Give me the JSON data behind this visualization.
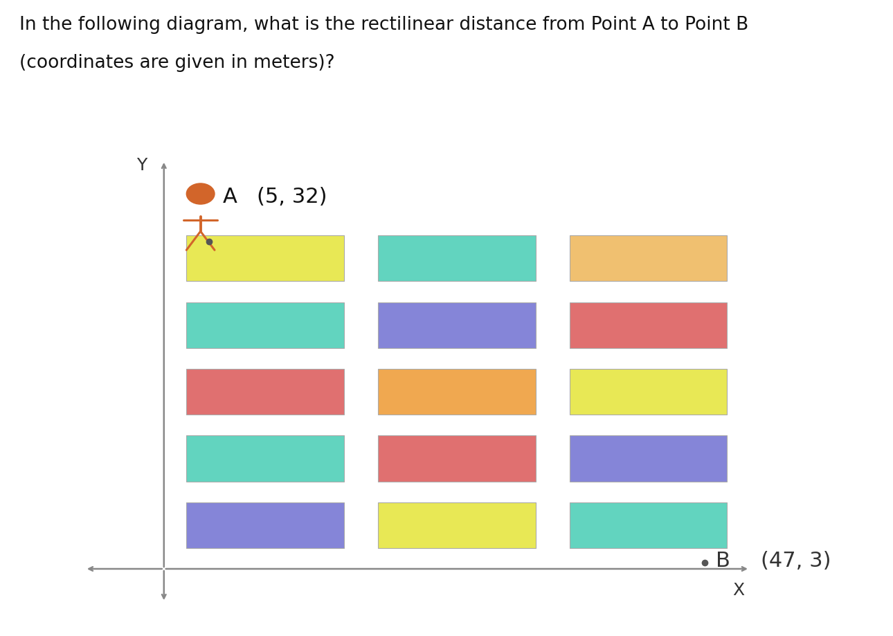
{
  "title_line1": "In the following diagram, what is the rectilinear distance from Point A to Point B",
  "title_line2": "(coordinates are given in meters)?",
  "point_a_label": "(5, 32)",
  "point_b_label": "(47, 3)",
  "background_color": "#ffffff",
  "title_fontsize": 19,
  "label_fontsize": 22,
  "rectangles": [
    {
      "row": 0,
      "col": 0,
      "color": "#e8e855"
    },
    {
      "row": 0,
      "col": 1,
      "color": "#62d4bf"
    },
    {
      "row": 0,
      "col": 2,
      "color": "#f0c070"
    },
    {
      "row": 1,
      "col": 0,
      "color": "#62d4bf"
    },
    {
      "row": 1,
      "col": 1,
      "color": "#8585d8"
    },
    {
      "row": 1,
      "col": 2,
      "color": "#e07070"
    },
    {
      "row": 2,
      "col": 0,
      "color": "#e07070"
    },
    {
      "row": 2,
      "col": 1,
      "color": "#f0a850"
    },
    {
      "row": 2,
      "col": 2,
      "color": "#e8e855"
    },
    {
      "row": 3,
      "col": 0,
      "color": "#62d4bf"
    },
    {
      "row": 3,
      "col": 1,
      "color": "#e07070"
    },
    {
      "row": 3,
      "col": 2,
      "color": "#8585d8"
    },
    {
      "row": 4,
      "col": 0,
      "color": "#8585d8"
    },
    {
      "row": 4,
      "col": 1,
      "color": "#e8e855"
    },
    {
      "row": 4,
      "col": 2,
      "color": "#62d4bf"
    }
  ],
  "person_color": "#d2652a",
  "axis_color": "#888888",
  "dot_color": "#555555"
}
